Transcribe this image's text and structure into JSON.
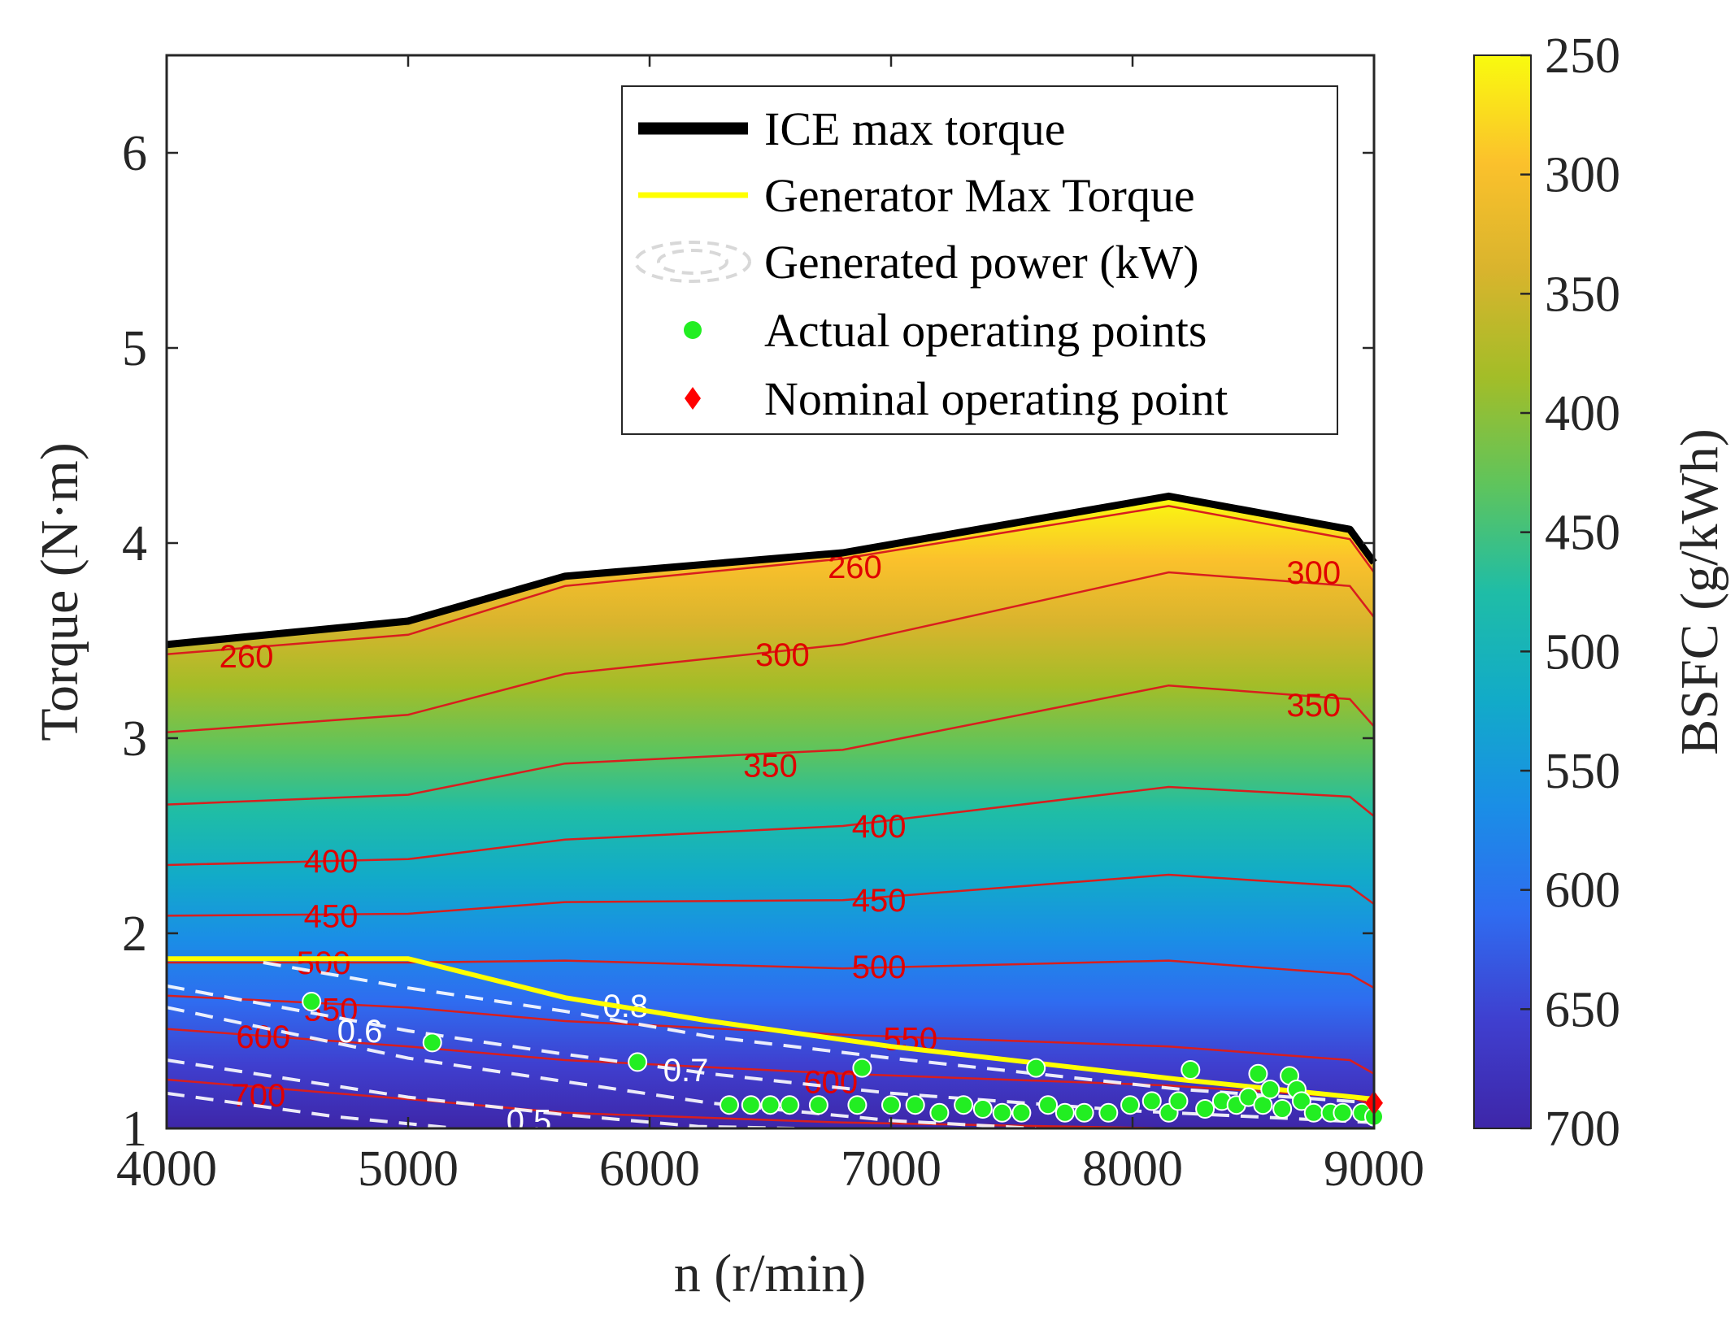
{
  "chart_data": {
    "type": "contour",
    "xlabel": "n (r/min)",
    "ylabel": "Torque (N·m)",
    "xlim": [
      4000,
      9000
    ],
    "ylim": [
      1,
      6.5
    ],
    "xticks": [
      4000,
      5000,
      6000,
      7000,
      8000,
      9000
    ],
    "yticks": [
      1,
      2,
      3,
      4,
      5,
      6
    ],
    "colorbar": {
      "label": "BSFC (g/kWh)",
      "range": [
        250,
        700
      ],
      "reversed": true,
      "ticks": [
        250,
        300,
        350,
        400,
        450,
        500,
        550,
        600,
        650,
        700
      ],
      "colormap": [
        "#f9fb0e",
        "#fbc12c",
        "#d9b42d",
        "#a3bd28",
        "#5fc45c",
        "#1fbda6",
        "#12abc8",
        "#1a8ee6",
        "#2f6cf0",
        "#3f3fcf",
        "#3e26a8"
      ]
    },
    "legend": [
      {
        "label": "ICE max torque",
        "style": "thick-line",
        "color": "#000000"
      },
      {
        "label": "Generator Max Torque",
        "style": "line",
        "color": "#ffff00"
      },
      {
        "label": "Generated power (kW)",
        "style": "dashed-contour",
        "color": "#ffffff"
      },
      {
        "label": "Actual operating points",
        "style": "marker-circle",
        "color": "#22ee22"
      },
      {
        "label": "Nominal operating point",
        "style": "marker-diamond",
        "color": "#ff0000"
      }
    ],
    "x_grid": [
      4000,
      5000,
      5650,
      6800,
      8150,
      8900,
      9000
    ],
    "ice_max_torque": [
      3.48,
      3.6,
      3.83,
      3.95,
      4.24,
      4.07,
      3.9
    ],
    "bsfc_contours": [
      {
        "level": 260,
        "y": [
          3.43,
          3.53,
          3.78,
          3.92,
          4.19,
          4.02,
          3.85
        ]
      },
      {
        "level": 300,
        "y": [
          3.03,
          3.12,
          3.33,
          3.48,
          3.85,
          3.78,
          3.62
        ]
      },
      {
        "level": 350,
        "y": [
          2.66,
          2.71,
          2.87,
          2.94,
          3.27,
          3.2,
          3.06
        ]
      },
      {
        "level": 400,
        "y": [
          2.35,
          2.38,
          2.48,
          2.55,
          2.75,
          2.7,
          2.6
        ]
      },
      {
        "level": 450,
        "y": [
          2.09,
          2.1,
          2.16,
          2.17,
          2.3,
          2.24,
          2.15
        ]
      },
      {
        "level": 500,
        "y": [
          1.85,
          1.85,
          1.86,
          1.82,
          1.86,
          1.79,
          1.72
        ]
      },
      {
        "level": 550,
        "y": [
          1.68,
          1.62,
          1.55,
          1.48,
          1.42,
          1.35,
          1.28
        ]
      },
      {
        "level": 600,
        "y": [
          1.51,
          1.42,
          1.35,
          1.28,
          1.22,
          1.16,
          1.12
        ]
      },
      {
        "level": 700,
        "y": [
          1.25,
          1.15,
          1.08,
          1.03,
          1.0,
          1.0,
          1.0
        ]
      }
    ],
    "bsfc_labels": [
      {
        "text": "260",
        "x": 4330,
        "y": 3.42
      },
      {
        "text": "260",
        "x": 6850,
        "y": 3.88
      },
      {
        "text": "300",
        "x": 6550,
        "y": 3.43
      },
      {
        "text": "300",
        "x": 8750,
        "y": 3.85
      },
      {
        "text": "350",
        "x": 6500,
        "y": 2.86
      },
      {
        "text": "350",
        "x": 8750,
        "y": 3.17
      },
      {
        "text": "400",
        "x": 4680,
        "y": 2.37
      },
      {
        "text": "400",
        "x": 6950,
        "y": 2.55
      },
      {
        "text": "450",
        "x": 4680,
        "y": 2.09
      },
      {
        "text": "450",
        "x": 6950,
        "y": 2.17
      },
      {
        "text": "500",
        "x": 4650,
        "y": 1.85
      },
      {
        "text": "500",
        "x": 6950,
        "y": 1.83
      },
      {
        "text": "550",
        "x": 4680,
        "y": 1.61
      },
      {
        "text": "550",
        "x": 7080,
        "y": 1.46
      },
      {
        "text": "600",
        "x": 4400,
        "y": 1.47
      },
      {
        "text": "700",
        "x": 4380,
        "y": 1.17
      },
      {
        "text": "600",
        "x": 6750,
        "y": 1.24
      }
    ],
    "generator_max_torque": {
      "x": [
        4000,
        5000,
        5650,
        6250,
        7000,
        8200,
        9000
      ],
      "y": [
        1.87,
        1.87,
        1.67,
        1.55,
        1.42,
        1.25,
        1.15
      ]
    },
    "power_contours": [
      {
        "level": 0.8,
        "x": [
          4400,
          5000,
          5650,
          6250,
          7000,
          8200,
          9000
        ],
        "y": [
          1.85,
          1.72,
          1.6,
          1.47,
          1.36,
          1.2,
          1.13
        ]
      },
      {
        "level": 0.7,
        "x": [
          4000,
          5000,
          5650,
          6250,
          7000,
          8000,
          9000
        ],
        "y": [
          1.73,
          1.5,
          1.38,
          1.28,
          1.18,
          1.09,
          1.03
        ]
      },
      {
        "level": 0.6,
        "x": [
          4000,
          5000,
          5650,
          6250,
          7000,
          7600
        ],
        "y": [
          1.62,
          1.36,
          1.24,
          1.13,
          1.04,
          1.0
        ]
      },
      {
        "level": 0.5,
        "x": [
          4000,
          5000,
          5650,
          6200,
          6600
        ],
        "y": [
          1.35,
          1.16,
          1.07,
          1.01,
          1.0
        ]
      },
      {
        "level": 0.4,
        "x": [
          4000,
          4700,
          5200
        ],
        "y": [
          1.18,
          1.06,
          1.0
        ]
      }
    ],
    "power_labels": [
      {
        "text": "0.8",
        "x": 5900,
        "y": 1.63
      },
      {
        "text": "0.7",
        "x": 6150,
        "y": 1.3
      },
      {
        "text": "0.6",
        "x": 4800,
        "y": 1.5
      },
      {
        "text": "0.5",
        "x": 5500,
        "y": 1.04
      }
    ],
    "actual_points": {
      "x": [
        4600,
        5100,
        5950,
        6330,
        6420,
        6500,
        6580,
        6700,
        6860,
        6880,
        7000,
        7100,
        7200,
        7300,
        7380,
        7460,
        7540,
        7600,
        7650,
        7720,
        7800,
        7900,
        7990,
        8080,
        8150,
        8190,
        8240,
        8300,
        8370,
        8430,
        8480,
        8520,
        8540,
        8570,
        8620,
        8650,
        8680,
        8700,
        8750,
        8820,
        8870,
        8950,
        9000
      ],
      "y": [
        1.65,
        1.44,
        1.34,
        1.12,
        1.12,
        1.12,
        1.12,
        1.12,
        1.12,
        1.31,
        1.12,
        1.12,
        1.08,
        1.12,
        1.1,
        1.08,
        1.08,
        1.31,
        1.12,
        1.08,
        1.08,
        1.08,
        1.12,
        1.14,
        1.08,
        1.14,
        1.3,
        1.1,
        1.14,
        1.12,
        1.16,
        1.28,
        1.12,
        1.2,
        1.1,
        1.27,
        1.2,
        1.14,
        1.08,
        1.08,
        1.08,
        1.08,
        1.06
      ]
    },
    "nominal_point": {
      "x": 9000,
      "y": 1.13
    }
  }
}
